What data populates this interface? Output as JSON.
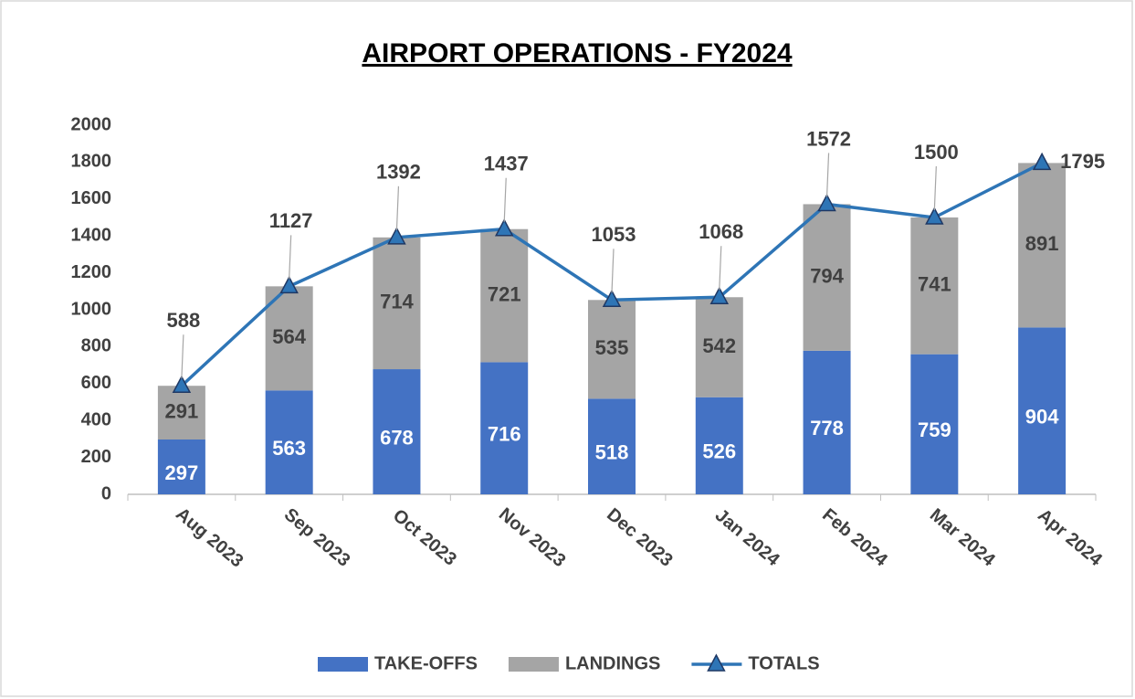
{
  "chart_data": {
    "type": "bar_line",
    "title": "AIRPORT OPERATIONS - FY2024",
    "categories": [
      "Aug 2023",
      "Sep 2023",
      "Oct 2023",
      "Nov 2023",
      "Dec 2023",
      "Jan 2024",
      "Feb 2024",
      "Mar 2024",
      "Apr 2024"
    ],
    "series": [
      {
        "name": "TAKE-OFFS",
        "type": "bar",
        "color": "#4472c4",
        "values": [
          297,
          563,
          678,
          716,
          518,
          526,
          778,
          759,
          904
        ]
      },
      {
        "name": "LANDINGS",
        "type": "bar",
        "color": "#a5a5a5",
        "values": [
          291,
          564,
          714,
          721,
          535,
          542,
          794,
          741,
          891
        ]
      },
      {
        "name": "TOTALS",
        "type": "line",
        "color": "#2e75b6",
        "values": [
          588,
          1127,
          1392,
          1437,
          1053,
          1068,
          1572,
          1500,
          1795
        ]
      }
    ],
    "stacked": true,
    "ylim": [
      0,
      2000
    ],
    "yticks": [
      0,
      200,
      400,
      600,
      800,
      1000,
      1200,
      1400,
      1600,
      1800,
      2000
    ],
    "grid": false,
    "legend": "bottom"
  }
}
